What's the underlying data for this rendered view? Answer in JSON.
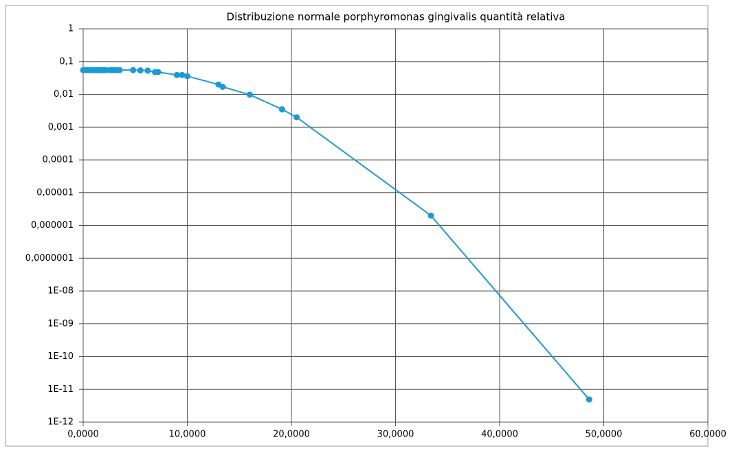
{
  "chart_data": {
    "type": "line",
    "title": "Distribuzione normale porphyromonas gingivalis quantità relativa",
    "x": [
      0,
      0.2,
      0.4,
      0.6,
      0.8,
      1.0,
      1.2,
      1.4,
      1.6,
      1.8,
      2.0,
      2.2,
      2.6,
      2.8,
      3.0,
      3.2,
      3.5,
      4.8,
      5.5,
      6.2,
      6.9,
      7.2,
      9.0,
      9.5,
      10.0,
      13.0,
      13.4,
      16.0,
      19.1,
      20.5,
      33.4,
      48.6
    ],
    "series": [
      {
        "color": "#1a9bd7",
        "values": [
          0.055,
          0.055,
          0.055,
          0.055,
          0.055,
          0.055,
          0.055,
          0.055,
          0.055,
          0.055,
          0.055,
          0.055,
          0.055,
          0.055,
          0.055,
          0.055,
          0.055,
          0.055,
          0.054,
          0.053,
          0.048,
          0.048,
          0.039,
          0.039,
          0.036,
          0.02,
          0.017,
          0.0098,
          0.0035,
          0.002,
          2e-06,
          4.9e-12
        ]
      }
    ],
    "xlim": [
      0,
      60
    ],
    "xticks": [
      {
        "value": 0,
        "label": "0,0000"
      },
      {
        "value": 10,
        "label": "10,0000"
      },
      {
        "value": 20,
        "label": "20,0000"
      },
      {
        "value": 30,
        "label": "30,0000"
      },
      {
        "value": 40,
        "label": "40,0000"
      },
      {
        "value": 50,
        "label": "50,0000"
      },
      {
        "value": 60,
        "label": "60,0000"
      }
    ],
    "ylim": [
      1e-12,
      1
    ],
    "ylog": true,
    "yticks": [
      {
        "value": 1e-12,
        "label": "1E-12"
      },
      {
        "value": 1e-11,
        "label": "1E-11"
      },
      {
        "value": 1e-10,
        "label": "1E-10"
      },
      {
        "value": 1e-09,
        "label": "1E-09"
      },
      {
        "value": 1e-08,
        "label": "1E-08"
      },
      {
        "value": 1e-07,
        "label": "0,0000001"
      },
      {
        "value": 1e-06,
        "label": "0,000001"
      },
      {
        "value": 1e-05,
        "label": "0,00001"
      },
      {
        "value": 0.0001,
        "label": "0,0001"
      },
      {
        "value": 0.001,
        "label": "0,001"
      },
      {
        "value": 0.01,
        "label": "0,01"
      },
      {
        "value": 0.1,
        "label": "0,1"
      },
      1
    ],
    "grid": true
  }
}
